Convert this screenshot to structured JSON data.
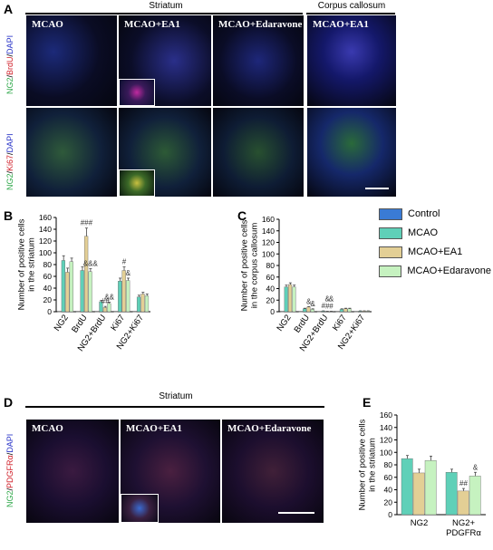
{
  "panels": {
    "A": {
      "letter": "A",
      "header_striatum": "Striatum",
      "header_cc": "Corpus callosum",
      "row1_label": [
        "NG2",
        "/",
        "BrdU",
        "/",
        "DAPI"
      ],
      "row2_label": [
        "NG2",
        "/",
        "Ki67",
        "/",
        "DAPI"
      ],
      "col_titles": [
        "MCAO",
        "MCAO+EA1",
        "MCAO+Edaravone",
        "MCAO+EA1"
      ]
    },
    "B": {
      "letter": "B"
    },
    "C": {
      "letter": "C"
    },
    "D": {
      "letter": "D",
      "header": "Striatum",
      "row_label": [
        "NG2",
        "/",
        "PDGFRα",
        "/",
        "DAPI"
      ],
      "col_titles": [
        "MCAO",
        "MCAO+EA1",
        "MCAO+Edaravone"
      ]
    },
    "E": {
      "letter": "E"
    }
  },
  "legend": {
    "items": [
      {
        "label": "Control",
        "color": "#3a7bd5"
      },
      {
        "label": "MCAO",
        "color": "#5fd0b8"
      },
      {
        "label": "MCAO+EA1",
        "color": "#e3cf95"
      },
      {
        "label": "MCAO+Edaravone",
        "color": "#c6f2c0"
      }
    ]
  },
  "colors": {
    "green": "#2fa84a",
    "red": "#d0202a",
    "blue": "#2a35c8"
  },
  "chart_data": [
    {
      "panel": "B",
      "type": "bar",
      "ylabel": "Number of positive cells\nin the striatum",
      "ylim": [
        0,
        160
      ],
      "yticks": [
        0,
        20,
        40,
        60,
        80,
        100,
        120,
        140,
        160
      ],
      "categories": [
        "NG2",
        "BrdU",
        "NG2+BrdU",
        "Ki67",
        "NG2+Ki67"
      ],
      "series": [
        {
          "name": "Control",
          "values": [
            0,
            0,
            0,
            0,
            0
          ],
          "errors": [
            0,
            0,
            0,
            0,
            0
          ]
        },
        {
          "name": "MCAO",
          "values": [
            87,
            70,
            17,
            52,
            25
          ],
          "errors": [
            8,
            6,
            2,
            5,
            3
          ]
        },
        {
          "name": "MCAO+EA1",
          "values": [
            67,
            128,
            7,
            70,
            30
          ],
          "errors": [
            7,
            14,
            2,
            6,
            3
          ]
        },
        {
          "name": "MCAO+Edaravone",
          "values": [
            85,
            68,
            14,
            53,
            27
          ],
          "errors": [
            6,
            5,
            2,
            4,
            3
          ]
        }
      ],
      "annotations": [
        {
          "category": "BrdU",
          "series": "MCAO+EA1",
          "text": "###"
        },
        {
          "category": "BrdU",
          "series": "MCAO+Edaravone",
          "text": "&&&"
        },
        {
          "category": "NG2+BrdU",
          "series": "MCAO+EA1",
          "text": "##"
        },
        {
          "category": "NG2+BrdU",
          "series": "MCAO+Edaravone",
          "text": "&&"
        },
        {
          "category": "Ki67",
          "series": "MCAO+EA1",
          "text": "#"
        },
        {
          "category": "Ki67",
          "series": "MCAO+Edaravone",
          "text": "&"
        }
      ]
    },
    {
      "panel": "C",
      "type": "bar",
      "ylabel": "Number of positive cells\nin the corpus callosum",
      "ylim": [
        0,
        160
      ],
      "yticks": [
        0,
        20,
        40,
        60,
        80,
        100,
        120,
        140,
        160
      ],
      "categories": [
        "NG2",
        "BrdU",
        "NG2+BrdU",
        "Ki67",
        "NG2+Ki67"
      ],
      "series": [
        {
          "name": "Control",
          "values": [
            0,
            0,
            0,
            0,
            0
          ],
          "errors": [
            0,
            0,
            0,
            0,
            0
          ]
        },
        {
          "name": "MCAO",
          "values": [
            43,
            5,
            1,
            4,
            1
          ],
          "errors": [
            3,
            1,
            0.5,
            1,
            0.5
          ]
        },
        {
          "name": "MCAO+EA1",
          "values": [
            47,
            8,
            0.5,
            5,
            1
          ],
          "errors": [
            3,
            1,
            0.3,
            1,
            0.5
          ]
        },
        {
          "name": "MCAO+Edaravone",
          "values": [
            43,
            4,
            0.5,
            5,
            1
          ],
          "errors": [
            3,
            1,
            0.3,
            1,
            0.5
          ]
        }
      ],
      "annotations": [
        {
          "category": "BrdU",
          "series": "MCAO+EA1",
          "text": "&"
        },
        {
          "category": "BrdU",
          "series": "MCAO+Edaravone",
          "text": "&"
        },
        {
          "category": "NG2+BrdU",
          "series": "MCAO",
          "text": "#"
        },
        {
          "category": "NG2+BrdU",
          "series": "MCAO+EA1",
          "text": "#"
        },
        {
          "category": "NG2+BrdU",
          "series": "MCAO+Edaravone",
          "text": "#"
        },
        {
          "category": "NG2+BrdU",
          "series": "MCAO+EA1",
          "text": "&"
        },
        {
          "category": "NG2+BrdU",
          "series": "MCAO+Edaravone",
          "text": "&"
        }
      ]
    },
    {
      "panel": "E",
      "type": "bar",
      "ylabel": "Number of positive cells\nin the striatum",
      "ylim": [
        0,
        160
      ],
      "yticks": [
        0,
        20,
        40,
        60,
        80,
        100,
        120,
        140,
        160
      ],
      "categories": [
        "NG2",
        "NG2+\nPDGFRα"
      ],
      "series": [
        {
          "name": "MCAO",
          "values": [
            90,
            68
          ],
          "errors": [
            5,
            5
          ]
        },
        {
          "name": "MCAO+EA1",
          "values": [
            67,
            38
          ],
          "errors": [
            6,
            4
          ]
        },
        {
          "name": "MCAO+Edaravone",
          "values": [
            87,
            62
          ],
          "errors": [
            7,
            6
          ]
        }
      ],
      "annotations": [
        {
          "category": "NG2+\nPDGFRα",
          "series": "MCAO+EA1",
          "text": "##"
        },
        {
          "category": "NG2+\nPDGFRα",
          "series": "MCAO+Edaravone",
          "text": "&"
        }
      ]
    }
  ]
}
